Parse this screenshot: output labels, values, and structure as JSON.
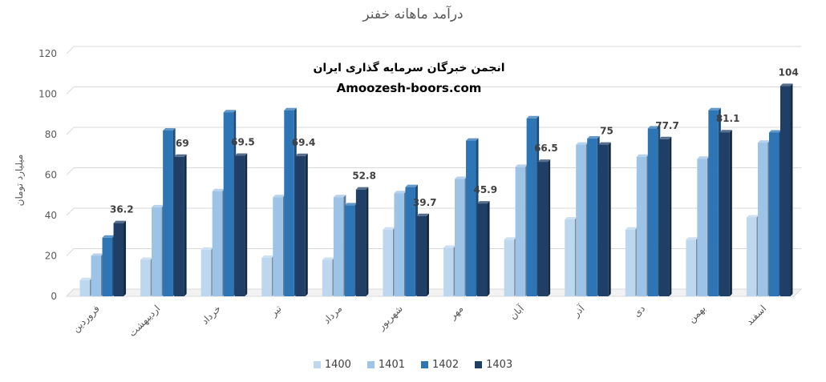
{
  "chart_data": {
    "type": "bar",
    "title": "درآمد ماهانه خفنر",
    "ylabel": "میلیارد تومان",
    "xlabel": "",
    "ylim": [
      0,
      120
    ],
    "yticks": [
      0,
      20,
      40,
      60,
      80,
      100,
      120
    ],
    "grid": true,
    "legend_position": "bottom",
    "categories": [
      "فروردین",
      "اردیبهشت",
      "خرداد",
      "تیر",
      "مرداد",
      "شهریور",
      "مهر",
      "آبان",
      "آذر",
      "دی",
      "بهمن",
      "اسفند"
    ],
    "series": [
      {
        "name": "1400",
        "color": "#bdd7ee",
        "values": [
          8,
          18,
          23,
          19,
          18,
          33,
          24,
          28,
          38,
          33,
          28,
          39
        ]
      },
      {
        "name": "1401",
        "color": "#9dc3e6",
        "values": [
          20,
          44,
          52,
          49,
          49,
          51,
          58,
          64,
          75,
          69,
          68,
          76
        ]
      },
      {
        "name": "1402",
        "color": "#2e75b6",
        "values": [
          29,
          82,
          91,
          92,
          45,
          54,
          77,
          88,
          78,
          83,
          92,
          81
        ]
      },
      {
        "name": "1403",
        "color": "#1f3f66",
        "values": [
          36.2,
          69,
          69.5,
          69.4,
          52.8,
          39.7,
          45.9,
          66.5,
          75,
          77.7,
          81.1,
          104
        ]
      }
    ],
    "data_labels": {
      "series": "1403",
      "labels": [
        "36.2",
        "69",
        "69.5",
        "69.4",
        "52.8",
        "39.7",
        "45.9",
        "66.5",
        "75",
        "77.7",
        "81.1",
        "104"
      ]
    }
  },
  "watermark": {
    "line1": "انجمن خبرگان سرمایه گذاری ایران",
    "line2": "Amoozesh-boors.com"
  }
}
